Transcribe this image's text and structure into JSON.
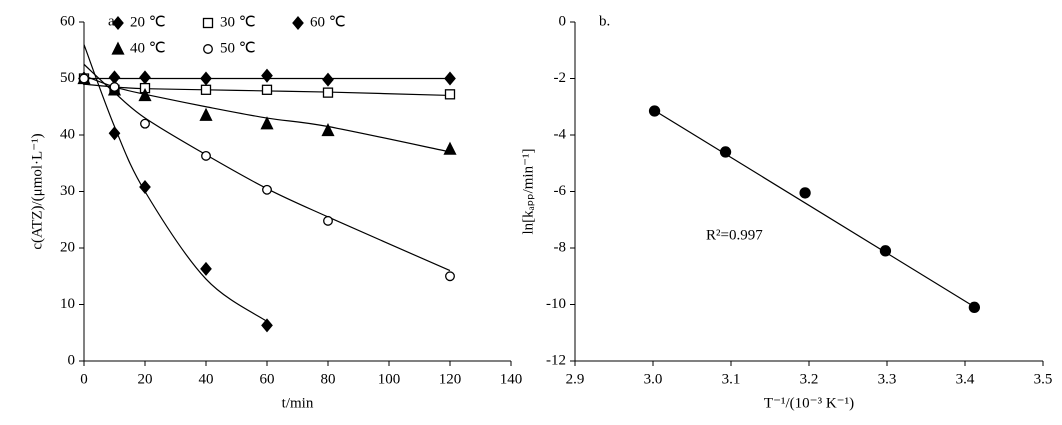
{
  "chart_data": [
    {
      "type": "scatter",
      "annotation": "a.",
      "xlabel": "t/min",
      "ylabel": "c(ATZ)/(μmol·L⁻¹)",
      "xlim": [
        0,
        140
      ],
      "xticks": [
        0,
        20,
        40,
        60,
        80,
        100,
        120,
        140
      ],
      "ylim": [
        0,
        60
      ],
      "yticks": [
        0,
        10,
        20,
        30,
        40,
        50,
        60
      ],
      "series": [
        {
          "name": "20 ℃",
          "color": "#000000",
          "marker": "diamond",
          "x": [
            0,
            10,
            20,
            40,
            60,
            80,
            120
          ],
          "values": [
            50,
            50.2,
            50.2,
            50,
            50.5,
            49.8,
            50
          ],
          "fit_values": [
            50,
            50,
            50,
            50,
            50,
            50,
            50
          ]
        },
        {
          "name": "30 ℃",
          "color": "#000000",
          "marker": "square-open",
          "x": [
            0,
            10,
            20,
            40,
            60,
            80,
            120
          ],
          "values": [
            50,
            48,
            48.3,
            48,
            48,
            47.5,
            47.2
          ],
          "fit_values": [
            49,
            48.5,
            48.2,
            48,
            47.8,
            47.6,
            47
          ]
        },
        {
          "name": "60 ℃",
          "color": "#000000",
          "marker": "diamond",
          "x": [
            0,
            10,
            20,
            40,
            60
          ],
          "values": [
            50,
            40.3,
            30.8,
            16.3,
            6.3
          ],
          "fit_values": [
            56,
            41.5,
            30,
            14.5,
            7
          ]
        },
        {
          "name": "40 ℃",
          "color": "#000000",
          "marker": "triangle",
          "x": [
            0,
            10,
            20,
            40,
            60,
            80,
            120
          ],
          "values": [
            50,
            48,
            47,
            43.5,
            42,
            40.8,
            37.5
          ],
          "fit_values": [
            50.5,
            48.5,
            47.2,
            45,
            43,
            41.5,
            37
          ]
        },
        {
          "name": "50 ℃",
          "color": "#000000",
          "marker": "circle-open",
          "x": [
            0,
            10,
            20,
            40,
            60,
            80,
            120
          ],
          "values": [
            50,
            48.5,
            42,
            36.3,
            30.3,
            24.8,
            15
          ],
          "fit_values": [
            52.5,
            47.5,
            43,
            36.5,
            30.5,
            25.5,
            16
          ]
        }
      ]
    },
    {
      "type": "scatter",
      "annotation": "b.",
      "text": "R²=0.997",
      "xlabel": "T⁻¹/(10⁻³ K⁻¹)",
      "ylabel": "ln[kₐₚₚ/min⁻¹]",
      "xlim": [
        2.9,
        3.5
      ],
      "xticks": [
        2.9,
        {
          "value": 3,
          "label": "3.0"
        },
        3.1,
        3.2,
        3.3,
        3.4,
        3.5
      ],
      "ylim": [
        -12,
        0
      ],
      "yticks": [
        -12,
        -10,
        -8,
        -6,
        -4,
        -2,
        0
      ],
      "color": "#000000",
      "marker": "circle",
      "x": [
        3.002,
        3.093,
        3.195,
        3.298,
        3.412
      ],
      "values": [
        -3.15,
        -4.6,
        -6.05,
        -8.1,
        -10.1
      ],
      "fit_x": [
        3.0,
        3.41
      ],
      "fit_values": [
        -3.1,
        -10.05
      ]
    }
  ]
}
